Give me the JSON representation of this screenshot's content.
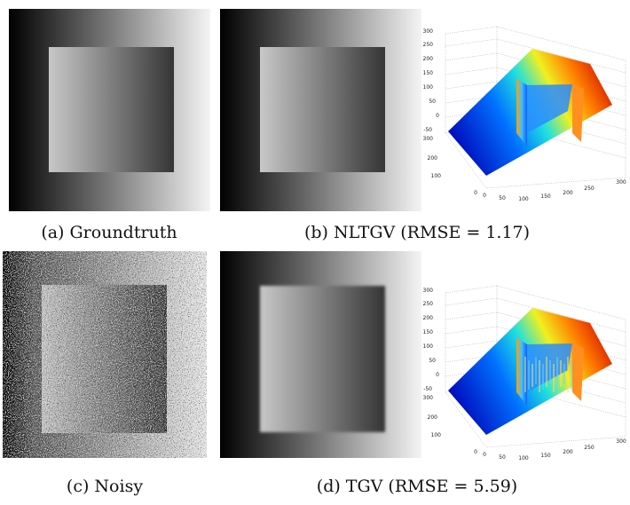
{
  "captions": {
    "a": "(a) Groundtruth",
    "b": "(b) NLTGV (RMSE = 1.17)",
    "c": "(c) Noisy",
    "d": "(d) TGV (RMSE = 5.59)"
  },
  "plots": [
    {
      "z_ticks": [
        300,
        250,
        200,
        150,
        100,
        50,
        0,
        -50
      ],
      "y_ticks": [
        300,
        200,
        100,
        0
      ],
      "x_ticks": [
        0,
        50,
        100,
        150,
        200,
        250,
        300
      ]
    },
    {
      "z_ticks": [
        300,
        250,
        200,
        150,
        100,
        50,
        0,
        -50
      ],
      "y_ticks": [
        300,
        200,
        100,
        0
      ],
      "x_ticks": [
        0,
        50,
        100,
        150,
        200,
        250,
        300
      ]
    }
  ]
}
